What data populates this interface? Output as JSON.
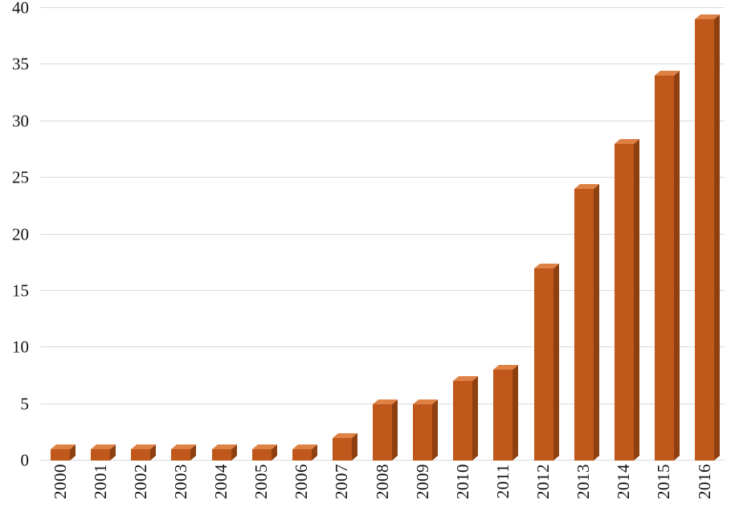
{
  "chart_data": {
    "type": "bar",
    "title": "",
    "xlabel": "",
    "ylabel": "",
    "categories": [
      "2000",
      "2001",
      "2002",
      "2003",
      "2004",
      "2005",
      "2006",
      "2007",
      "2008",
      "2009",
      "2010",
      "2011",
      "2012",
      "2013",
      "2014",
      "2015",
      "2016"
    ],
    "values": [
      1,
      1,
      1,
      1,
      1,
      1,
      1,
      2,
      5,
      5,
      7,
      8,
      17,
      24,
      28,
      34,
      39
    ],
    "ylim": [
      0,
      40
    ],
    "yticks": [
      0,
      5,
      10,
      15,
      20,
      25,
      30,
      35,
      40
    ],
    "grid": "horizontal",
    "legend": "none",
    "bar_style": "3d",
    "x_tick_rotation": 90,
    "colors": {
      "bar_front": "#C0571B",
      "bar_side": "#8E4011",
      "bar_top": "#DE8145",
      "gridline": "#D9D9D9",
      "background": "#FFFFFF",
      "text": "#111111"
    }
  }
}
